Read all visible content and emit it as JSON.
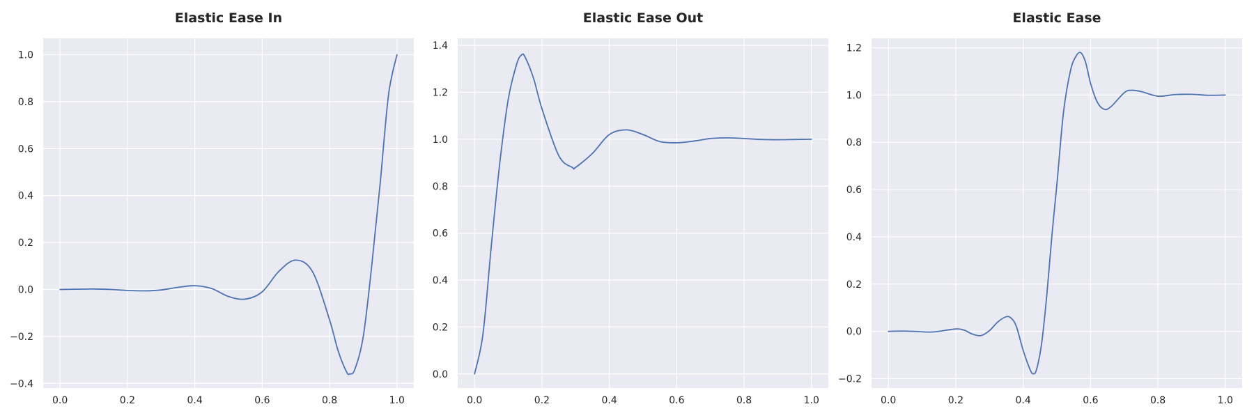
{
  "chart_data": [
    {
      "type": "line",
      "title": "Elastic Ease In",
      "xlabel": "",
      "ylabel": "",
      "xlim": [
        -0.05,
        1.05
      ],
      "ylim": [
        -0.42,
        1.07
      ],
      "xticks": [
        0.0,
        0.2,
        0.4,
        0.6,
        0.8,
        1.0
      ],
      "xtick_labels": [
        "0.0",
        "0.2",
        "0.4",
        "0.6",
        "0.8",
        "1.0"
      ],
      "yticks": [
        -0.4,
        -0.2,
        0.0,
        0.2,
        0.4,
        0.6,
        0.8,
        1.0
      ],
      "ytick_labels": [
        "−0.4",
        "−0.2",
        "0.0",
        "0.2",
        "0.4",
        "0.6",
        "0.8",
        "1.0"
      ],
      "grid": true,
      "series": [
        {
          "color": "#4c72b0",
          "x": [
            0.0,
            0.05,
            0.1,
            0.15,
            0.2,
            0.25,
            0.3,
            0.35,
            0.4,
            0.45,
            0.5,
            0.55,
            0.6,
            0.65,
            0.7,
            0.75,
            0.8,
            0.825,
            0.85,
            0.86,
            0.875,
            0.9,
            0.925,
            0.95,
            0.975,
            1.0
          ],
          "y": [
            0.0,
            0.001,
            0.002,
            0.0,
            -0.004,
            -0.006,
            -0.002,
            0.009,
            0.016,
            0.004,
            -0.03,
            -0.041,
            -0.01,
            0.078,
            0.125,
            0.074,
            -0.13,
            -0.26,
            -0.35,
            -0.36,
            -0.34,
            -0.2,
            0.1,
            0.45,
            0.83,
            1.0
          ]
        }
      ]
    },
    {
      "type": "line",
      "title": "Elastic Ease Out",
      "xlabel": "",
      "ylabel": "",
      "xlim": [
        -0.05,
        1.05
      ],
      "ylim": [
        -0.06,
        1.43
      ],
      "xticks": [
        0.0,
        0.2,
        0.4,
        0.6,
        0.8,
        1.0
      ],
      "xtick_labels": [
        "0.0",
        "0.2",
        "0.4",
        "0.6",
        "0.8",
        "1.0"
      ],
      "yticks": [
        0.0,
        0.2,
        0.4,
        0.6,
        0.8,
        1.0,
        1.2,
        1.4
      ],
      "ytick_labels": [
        "0.0",
        "0.2",
        "0.4",
        "0.6",
        "0.8",
        "1.0",
        "1.2",
        "1.4"
      ],
      "grid": true,
      "series": [
        {
          "color": "#4c72b0",
          "x": [
            0.0,
            0.025,
            0.05,
            0.075,
            0.1,
            0.125,
            0.14,
            0.15,
            0.175,
            0.2,
            0.25,
            0.29,
            0.3,
            0.35,
            0.4,
            0.45,
            0.5,
            0.55,
            0.6,
            0.65,
            0.7,
            0.75,
            0.8,
            0.85,
            0.9,
            0.95,
            1.0
          ],
          "y": [
            0.0,
            0.17,
            0.55,
            0.9,
            1.17,
            1.32,
            1.36,
            1.35,
            1.26,
            1.13,
            0.93,
            0.88,
            0.88,
            0.94,
            1.02,
            1.04,
            1.02,
            0.99,
            0.985,
            0.992,
            1.003,
            1.006,
            1.003,
            0.999,
            0.998,
            0.999,
            1.0
          ]
        }
      ]
    },
    {
      "type": "line",
      "title": "Elastic Ease",
      "xlabel": "",
      "ylabel": "",
      "xlim": [
        -0.05,
        1.05
      ],
      "ylim": [
        -0.24,
        1.24
      ],
      "xticks": [
        0.0,
        0.2,
        0.4,
        0.6,
        0.8,
        1.0
      ],
      "xtick_labels": [
        "0.0",
        "0.2",
        "0.4",
        "0.6",
        "0.8",
        "1.0"
      ],
      "yticks": [
        -0.2,
        0.0,
        0.2,
        0.4,
        0.6,
        0.8,
        1.0,
        1.2
      ],
      "ytick_labels": [
        "−0.2",
        "0.0",
        "0.2",
        "0.4",
        "0.6",
        "0.8",
        "1.0",
        "1.2"
      ],
      "grid": true,
      "series": [
        {
          "color": "#4c72b0",
          "x": [
            0.0,
            0.05,
            0.1,
            0.125,
            0.15,
            0.2,
            0.225,
            0.25,
            0.275,
            0.3,
            0.325,
            0.35,
            0.365,
            0.38,
            0.4,
            0.42,
            0.43,
            0.44,
            0.455,
            0.47,
            0.485,
            0.5,
            0.52,
            0.54,
            0.555,
            0.57,
            0.585,
            0.6,
            0.62,
            0.64,
            0.66,
            0.7,
            0.72,
            0.75,
            0.8,
            0.85,
            0.9,
            0.95,
            1.0
          ],
          "y": [
            0.0,
            0.001,
            -0.002,
            -0.003,
            0.0,
            0.01,
            0.005,
            -0.012,
            -0.018,
            0.003,
            0.04,
            0.062,
            0.055,
            0.02,
            -0.08,
            -0.16,
            -0.18,
            -0.16,
            -0.05,
            0.15,
            0.4,
            0.62,
            0.93,
            1.1,
            1.16,
            1.18,
            1.14,
            1.05,
            0.97,
            0.94,
            0.95,
            1.01,
            1.02,
            1.015,
            0.995,
            1.002,
            1.003,
            0.999,
            1.0
          ]
        }
      ]
    }
  ]
}
